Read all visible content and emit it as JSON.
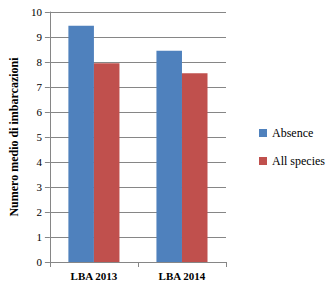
{
  "chart_data": {
    "type": "bar",
    "y_label": "Numero medio di imbarcazioni",
    "categories": [
      "LBA 2013",
      "LBA 2014"
    ],
    "series": [
      {
        "name": "Absence",
        "color": "#4f81bd",
        "values": [
          9.45,
          8.45
        ]
      },
      {
        "name": "All species",
        "color": "#c0504d",
        "values": [
          7.95,
          7.55
        ]
      }
    ],
    "ylim": [
      0,
      10
    ],
    "yticks": [
      0,
      1,
      2,
      3,
      4,
      5,
      6,
      7,
      8,
      9,
      10
    ],
    "grid": true,
    "legend": "right"
  }
}
